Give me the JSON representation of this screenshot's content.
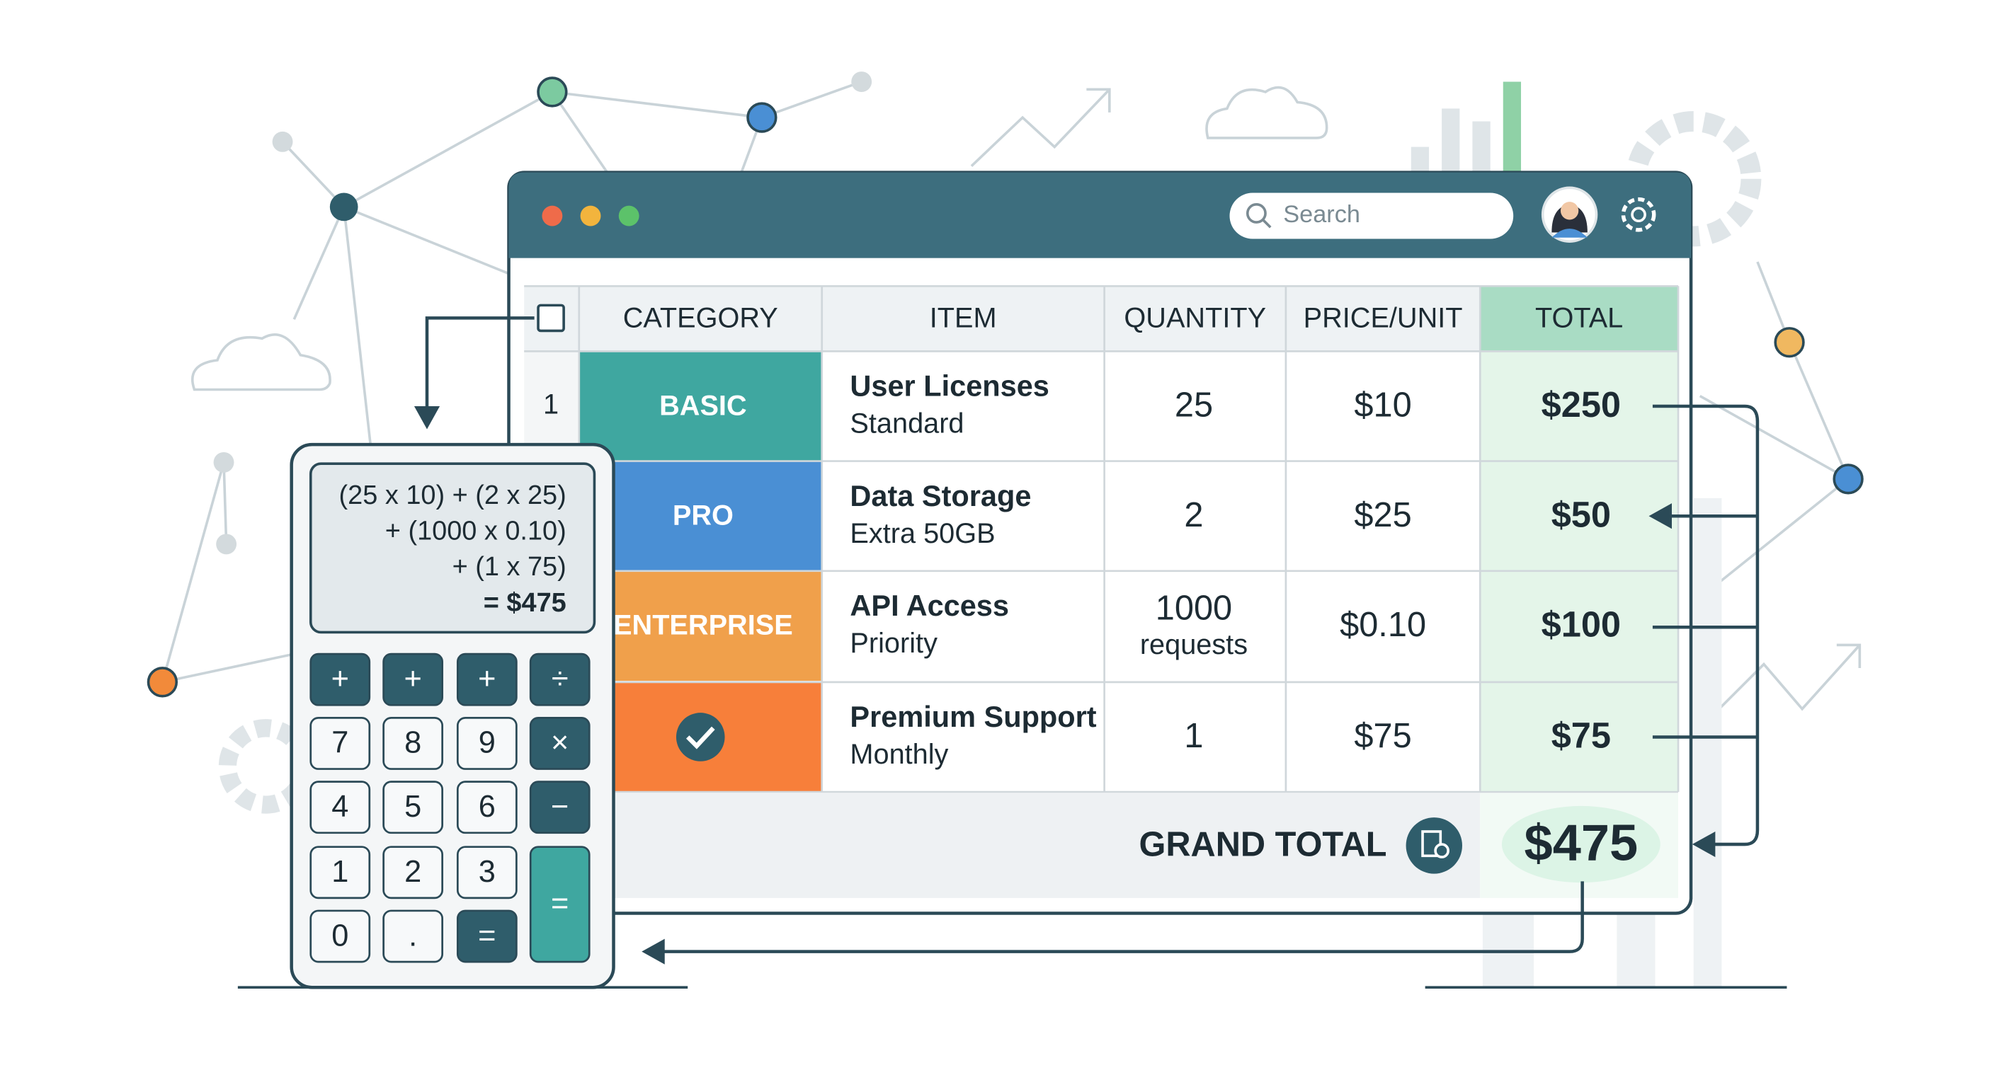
{
  "window": {
    "search_placeholder": "Search"
  },
  "table": {
    "headers": [
      "CATEGORY",
      "ITEM",
      "QUANTITY",
      "PRICE/UNIT",
      "TOTAL"
    ],
    "rows": [
      {
        "index": "1",
        "category": "BASIC",
        "item": "User Licenses",
        "detail": "Standard",
        "quantity": "25",
        "price": "$10",
        "total": "$250"
      },
      {
        "category": "PRO",
        "item": "Data Storage",
        "detail": "Extra 50GB",
        "quantity": "2",
        "price": "$25",
        "total": "$50"
      },
      {
        "category": "ENTERPRISE",
        "item": "API Access",
        "detail": "Priority",
        "quantity": "1000",
        "quantity_unit": "requests",
        "price": "$0.10",
        "total": "$100"
      },
      {
        "item": "Premium Support",
        "detail": "Monthly",
        "quantity": "1",
        "price": "$75",
        "total": "$75"
      }
    ]
  },
  "grand_total": {
    "label": "GRAND TOTAL",
    "value": "$475"
  },
  "calculator": {
    "display": [
      "(25 x 10) + (2 x 25)",
      "+ (1000 x 0.10)",
      "+ (1 x 75)",
      "= $475"
    ],
    "keys": [
      "+",
      "+",
      "+",
      "÷",
      "7",
      "8",
      "9",
      "×",
      "4",
      "5",
      "6",
      "−",
      "1",
      "2",
      "3",
      "0",
      ".",
      "=",
      "="
    ]
  }
}
